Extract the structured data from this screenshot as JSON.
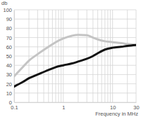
{
  "chart_data": {
    "type": "line",
    "y_label": "db",
    "x_label": "Frequency in MHz",
    "x": [
      0.1,
      0.15,
      0.2,
      0.3,
      0.5,
      0.7,
      1,
      1.5,
      2,
      3,
      4,
      5,
      7,
      10,
      15,
      20,
      30
    ],
    "series": [
      {
        "color": "#c4c4c4",
        "values": [
          28,
          38,
          45,
          52,
          60,
          65,
          69,
          72,
          73,
          72.5,
          70,
          68,
          66,
          65,
          64,
          63,
          62
        ]
      },
      {
        "color": "#111111",
        "values": [
          17,
          22,
          26,
          30,
          35,
          38,
          40,
          42,
          44,
          47,
          50,
          53,
          57,
          59,
          60,
          61,
          62
        ]
      }
    ],
    "xlim": [
      0.1,
      30
    ],
    "ylim": [
      0,
      100
    ],
    "xticks": [
      0.1,
      {
        "value": 0.2,
        "label": null
      },
      {
        "value": 0.3,
        "label": null
      },
      {
        "value": 0.4,
        "label": null
      },
      {
        "value": 0.5,
        "label": null
      },
      {
        "value": 0.6,
        "label": null
      },
      {
        "value": 0.7,
        "label": null
      },
      {
        "value": 0.8,
        "label": null
      },
      {
        "value": 0.9,
        "label": null
      },
      1,
      {
        "value": 2,
        "label": null
      },
      {
        "value": 3,
        "label": null
      },
      {
        "value": 4,
        "label": null
      },
      {
        "value": 5,
        "label": null
      },
      {
        "value": 6,
        "label": null
      },
      {
        "value": 7,
        "label": null
      },
      {
        "value": 8,
        "label": null
      },
      {
        "value": 9,
        "label": null
      },
      10,
      {
        "value": 20,
        "label": null
      },
      30
    ],
    "yticks": [
      0,
      10,
      20,
      30,
      40,
      50,
      60,
      70,
      80,
      90,
      100
    ],
    "log": "x",
    "grid": true
  }
}
